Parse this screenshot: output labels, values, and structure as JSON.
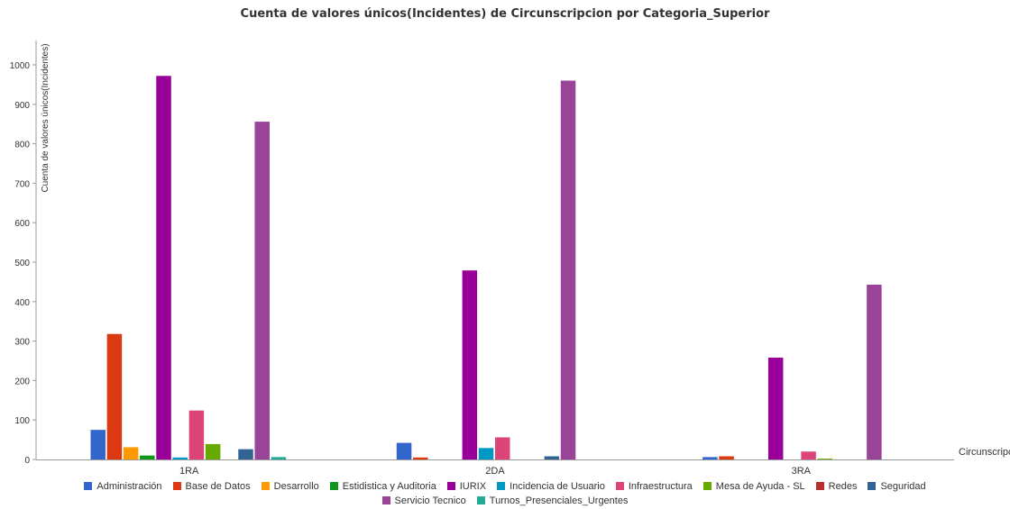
{
  "chart_data": {
    "type": "bar",
    "title": "Cuenta de valores únicos(Incidentes) de Circunscripcion por Categoria_Superior",
    "xlabel": "Circunscripcion",
    "ylabel": "Cuenta de valores únicos(Incidentes)",
    "ylim": [
      0,
      1050
    ],
    "yticks": [
      0,
      100,
      200,
      300,
      400,
      500,
      600,
      700,
      800,
      900,
      1000
    ],
    "grid": false,
    "legend_position": "bottom",
    "categories": [
      "1RA",
      "2DA",
      "3RA"
    ],
    "series": [
      {
        "name": "Administración",
        "color": "#3366cc",
        "values": [
          75,
          42,
          6
        ]
      },
      {
        "name": "Base de Datos",
        "color": "#dc3912",
        "values": [
          318,
          5,
          8
        ]
      },
      {
        "name": "Desarrollo",
        "color": "#ff9900",
        "values": [
          31,
          0,
          0
        ]
      },
      {
        "name": "Estidistica y Auditoria",
        "color": "#109618",
        "values": [
          10,
          0,
          0
        ]
      },
      {
        "name": "IURIX",
        "color": "#990099",
        "values": [
          972,
          479,
          258
        ]
      },
      {
        "name": "Incidencia de Usuario",
        "color": "#0099c6",
        "values": [
          5,
          29,
          0
        ]
      },
      {
        "name": "Infraestructura",
        "color": "#dd4477",
        "values": [
          124,
          56,
          20
        ]
      },
      {
        "name": "Mesa de Ayuda - SL",
        "color": "#66aa00",
        "values": [
          39,
          0,
          2
        ]
      },
      {
        "name": "Redes",
        "color": "#b82e2e",
        "values": [
          0,
          0,
          0
        ]
      },
      {
        "name": "Seguridad",
        "color": "#316395",
        "values": [
          26,
          8,
          0
        ]
      },
      {
        "name": "Servicio Tecnico",
        "color": "#994499",
        "values": [
          856,
          960,
          443
        ]
      },
      {
        "name": "Turnos_Presenciales_Urgentes",
        "color": "#22aa99",
        "values": [
          6,
          0,
          0
        ]
      }
    ]
  }
}
